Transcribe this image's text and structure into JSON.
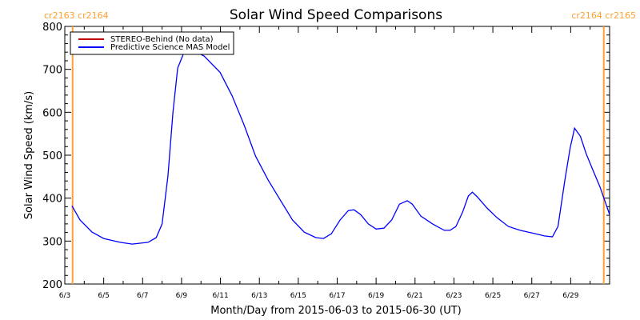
{
  "chart_data": {
    "type": "line",
    "title": "Solar Wind Speed Comparisons",
    "xlabel": "Month/Day from 2015-06-03 to 2015-06-30 (UT)",
    "ylabel": "Solar Wind Speed (km/s)",
    "xlim_days_from_start": [
      0,
      28
    ],
    "ylim": [
      200,
      800
    ],
    "y_ticks": [
      "200",
      "300",
      "400",
      "500",
      "600",
      "700",
      "800"
    ],
    "x_ticks": [
      "6/3",
      "6/5",
      "6/7",
      "6/9",
      "6/11",
      "6/13",
      "6/15",
      "6/17",
      "6/19",
      "6/21",
      "6/23",
      "6/25",
      "6/27",
      "6/29"
    ],
    "legend_position": "top-left",
    "carrington_markers": [
      {
        "label": "cr2163 cr2164",
        "day": 0.4
      },
      {
        "label": "cr2164 cr2165",
        "day": 27.7
      }
    ],
    "marker_color": "#FFA030",
    "series": [
      {
        "name": "STEREO-Behind (No data)",
        "color": "#C00000",
        "x": [],
        "y": []
      },
      {
        "name": "Predictive Science MAS Model",
        "color": "#0000FF",
        "x": [
          0.37,
          0.78,
          1.4,
          2.0,
          2.84,
          3.46,
          4.28,
          4.7,
          5.0,
          5.3,
          5.56,
          5.8,
          6.13,
          6.5,
          7.16,
          7.98,
          8.6,
          9.2,
          9.8,
          10.45,
          11.07,
          11.7,
          12.3,
          12.9,
          13.3,
          13.7,
          14.15,
          14.57,
          14.86,
          15.2,
          15.6,
          16.0,
          16.4,
          16.8,
          17.2,
          17.6,
          17.86,
          18.3,
          18.9,
          19.5,
          19.8,
          20.1,
          20.45,
          20.74,
          20.95,
          21.2,
          21.7,
          22.2,
          22.8,
          23.4,
          24.0,
          24.65,
          25.06,
          25.35,
          25.7,
          25.97,
          26.2,
          26.5,
          26.8,
          27.1,
          27.5,
          28.0
        ],
        "y": [
          382,
          349,
          321,
          306,
          297,
          293,
          297,
          308,
          340,
          451,
          600,
          703,
          740,
          746,
          731,
          693,
          638,
          572,
          498,
          442,
          396,
          349,
          321,
          308,
          306,
          317,
          349,
          371,
          373,
          362,
          340,
          328,
          330,
          349,
          386,
          394,
          386,
          358,
          340,
          325,
          325,
          334,
          368,
          405,
          414,
          403,
          377,
          355,
          334,
          325,
          319,
          312,
          310,
          334,
          442,
          516,
          563,
          544,
          503,
          470,
          427,
          362
        ]
      }
    ]
  }
}
